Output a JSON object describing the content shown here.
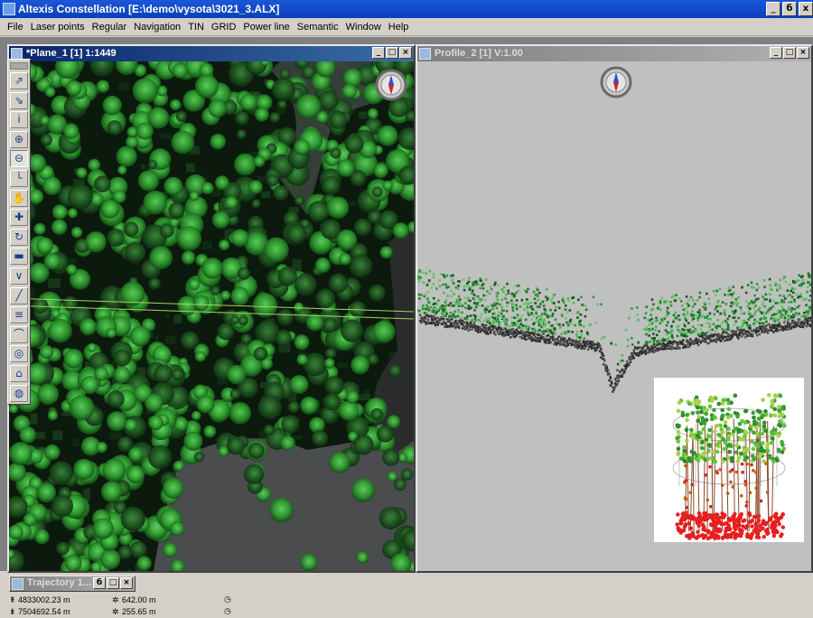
{
  "app": {
    "title": "Altexis Constellation [E:\\demo\\vysota\\3021_3.ALX]",
    "window_buttons": [
      "_",
      "б",
      "x"
    ]
  },
  "menu": [
    "File",
    "Laser points",
    "Regular",
    "Navigation",
    "TIN",
    "GRID",
    "Power line",
    "Semantic",
    "Window",
    "Help"
  ],
  "windows": {
    "plane": {
      "title": "*Plane_1 [1] 1:1449",
      "buttons": [
        "_",
        "□",
        "×"
      ]
    },
    "profile": {
      "title": "Profile_2 [1] V:1.00",
      "buttons": [
        "_",
        "□",
        "×"
      ]
    },
    "trajectory": {
      "title": "Trajectory 1...",
      "buttons": [
        "б",
        "□",
        "×"
      ]
    }
  },
  "toolbar": {
    "tools": [
      {
        "name": "select-arrow-tool-icon",
        "glyph": "⇗"
      },
      {
        "name": "select-area-tool-icon",
        "glyph": "⇘"
      },
      {
        "name": "info-tool-icon",
        "glyph": "i"
      },
      {
        "name": "zoom-in-tool-icon",
        "glyph": "⊕"
      },
      {
        "name": "zoom-out-tool-icon",
        "glyph": "⊖"
      },
      {
        "name": "measure-tool-icon",
        "glyph": "└"
      },
      {
        "name": "pan-hand-tool-icon",
        "glyph": "✋"
      },
      {
        "name": "move-cross-tool-icon",
        "glyph": "✚"
      },
      {
        "name": "rotate-tool-icon",
        "glyph": "↻"
      },
      {
        "name": "classify-tool-icon",
        "glyph": "▬"
      },
      {
        "name": "profile-tool-icon",
        "glyph": "∨"
      },
      {
        "name": "line-tool-icon",
        "glyph": "╱"
      },
      {
        "name": "layers-tool-icon",
        "glyph": "≡"
      },
      {
        "name": "curve-tool-icon",
        "glyph": "⌒"
      },
      {
        "name": "search-zoom-tool-icon",
        "glyph": "◎"
      },
      {
        "name": "building-tool-icon",
        "glyph": "⌂"
      },
      {
        "name": "globe-tool-icon",
        "glyph": "◍"
      }
    ],
    "pressed_index": 4
  },
  "status": {
    "north": "4833002.23 m",
    "east": "7504692.54 m",
    "height": "642.00 m",
    "height2": "255.65 m"
  },
  "colors": {
    "title_active": "#0a246a",
    "tree_green": "#3aa33a",
    "ground_gray": "#6a6a6a",
    "trunk_red": "#e02020"
  }
}
